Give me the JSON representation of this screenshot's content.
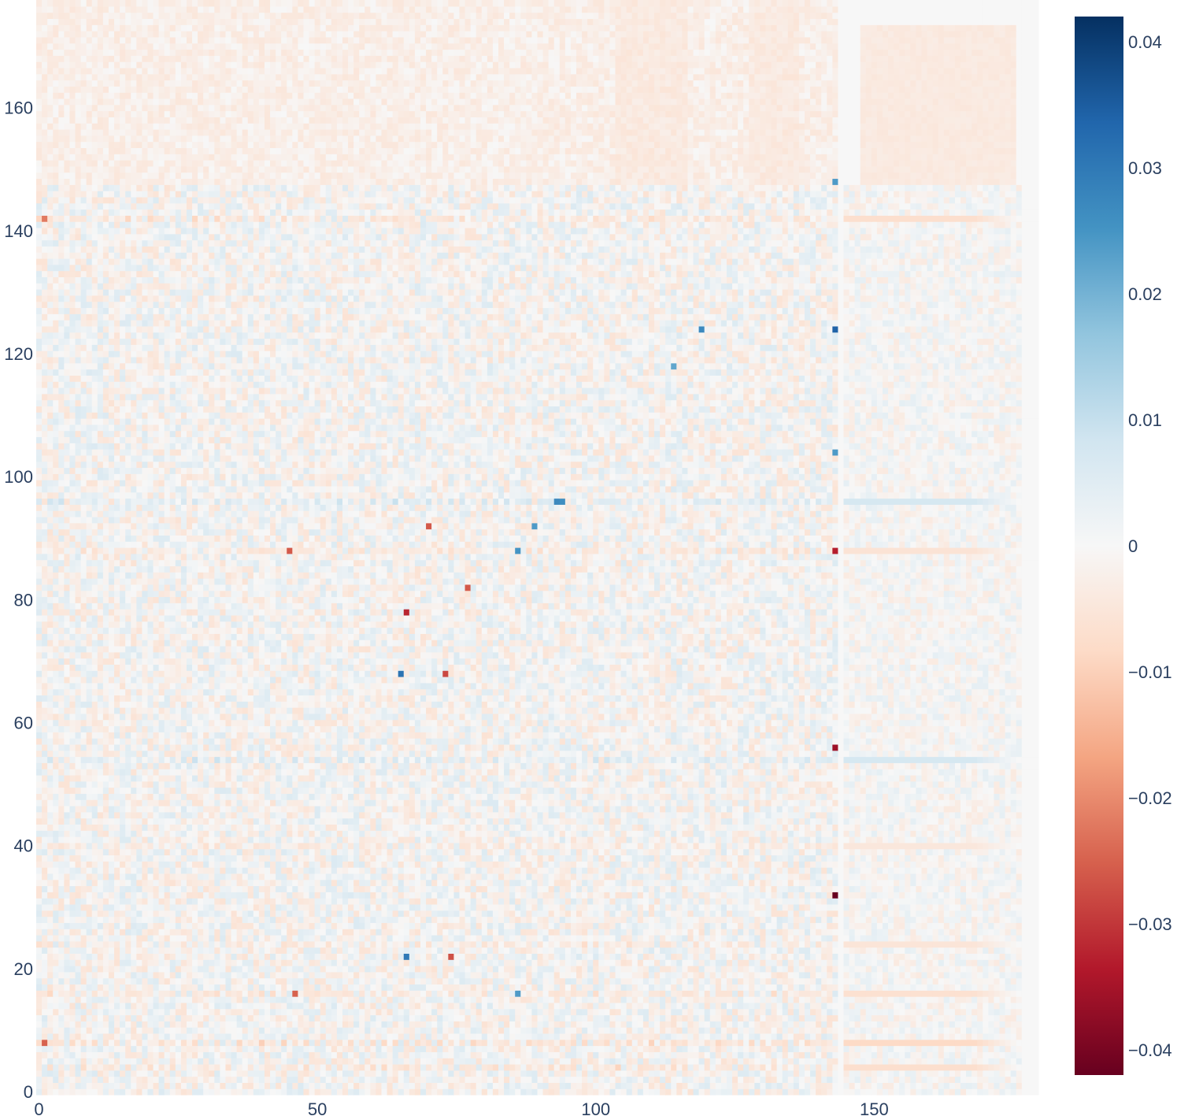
{
  "chart_data": {
    "type": "heatmap",
    "title": "",
    "xlabel": "",
    "ylabel": "",
    "n_cols": 180,
    "n_rows": 178,
    "xlim": [
      -0.5,
      179.5
    ],
    "ylim": [
      -0.5,
      177.5
    ],
    "x_ticks": [
      0,
      50,
      100,
      150
    ],
    "x_tick_labels": [
      "0",
      "50",
      "100",
      "150"
    ],
    "y_ticks": [
      0,
      20,
      40,
      60,
      80,
      100,
      120,
      140,
      160
    ],
    "y_tick_labels": [
      "0",
      "20",
      "40",
      "60",
      "80",
      "100",
      "120",
      "140",
      "160"
    ],
    "colorscale": "RdBu",
    "colorscale_stops": [
      "#67001f",
      "#b2182b",
      "#d6604d",
      "#f4a582",
      "#fddbc7",
      "#f7f7f7",
      "#d1e5f0",
      "#92c5de",
      "#4393c3",
      "#2166ac",
      "#053061"
    ],
    "zmin": -0.042,
    "zmax": 0.042,
    "colorbar_ticks": [
      0.04,
      0.03,
      0.02,
      0.01,
      0,
      -0.01,
      -0.02,
      -0.03,
      -0.04
    ],
    "colorbar_tick_labels": [
      "0.04",
      "0.03",
      "0.02",
      "0.01",
      "0",
      "−0.01",
      "−0.02",
      "−0.03",
      "−0.04"
    ],
    "regions": [
      {
        "desc": "upper band rows 148-177, cols 0-143",
        "rows": [
          148,
          177
        ],
        "cols": [
          0,
          143
        ],
        "mean": -0.0025,
        "spread": 0.0025
      },
      {
        "desc": "upper band rows 148-177, cols 104-116",
        "rows": [
          148,
          177
        ],
        "cols": [
          104,
          116
        ],
        "mean": -0.004,
        "spread": 0.0015
      },
      {
        "desc": "upper band rows 148-177, cols 128-136",
        "rows": [
          148,
          177
        ],
        "cols": [
          128,
          136
        ],
        "mean": -0.004,
        "spread": 0.0015
      },
      {
        "desc": "upper-right block rows 148-173, cols 148-175",
        "rows": [
          148,
          173
        ],
        "cols": [
          148,
          175
        ],
        "mean": -0.004,
        "spread": 0.0008
      },
      {
        "desc": "main body rows 0-147, cols 0-143",
        "rows": [
          0,
          147
        ],
        "cols": [
          0,
          143
        ],
        "mean": 0.0,
        "spread": 0.006
      },
      {
        "desc": "right stripes rows 0-147, cols 145-176",
        "rows": [
          0,
          147
        ],
        "cols": [
          145,
          176
        ],
        "mean": 0.0,
        "spread": 0.004
      }
    ],
    "row_bands": [
      {
        "row": 4,
        "value": -0.012
      },
      {
        "row": 8,
        "value": -0.014
      },
      {
        "row": 16,
        "value": -0.011
      },
      {
        "row": 24,
        "value": -0.009
      },
      {
        "row": 40,
        "value": -0.008
      },
      {
        "row": 54,
        "value": 0.012
      },
      {
        "row": 88,
        "value": -0.01
      },
      {
        "row": 96,
        "value": 0.012
      },
      {
        "row": 142,
        "value": -0.012
      }
    ],
    "notable_cells": [
      {
        "x": 143,
        "y": 32,
        "value": -0.042
      },
      {
        "x": 143,
        "y": 56,
        "value": -0.036
      },
      {
        "x": 143,
        "y": 124,
        "value": 0.034
      },
      {
        "x": 143,
        "y": 88,
        "value": -0.033
      },
      {
        "x": 66,
        "y": 78,
        "value": -0.032
      },
      {
        "x": 65,
        "y": 68,
        "value": 0.031
      },
      {
        "x": 66,
        "y": 22,
        "value": 0.03
      },
      {
        "x": 73,
        "y": 68,
        "value": -0.028
      },
      {
        "x": 74,
        "y": 22,
        "value": -0.027
      },
      {
        "x": 93,
        "y": 96,
        "value": 0.027
      },
      {
        "x": 94,
        "y": 96,
        "value": 0.026
      },
      {
        "x": 119,
        "y": 124,
        "value": 0.027
      },
      {
        "x": 143,
        "y": 148,
        "value": 0.024
      },
      {
        "x": 143,
        "y": 104,
        "value": 0.024
      },
      {
        "x": 86,
        "y": 88,
        "value": 0.025
      },
      {
        "x": 89,
        "y": 92,
        "value": 0.024
      },
      {
        "x": 77,
        "y": 82,
        "value": -0.026
      },
      {
        "x": 45,
        "y": 88,
        "value": -0.026
      },
      {
        "x": 70,
        "y": 92,
        "value": -0.026
      },
      {
        "x": 46,
        "y": 16,
        "value": -0.025
      },
      {
        "x": 1,
        "y": 8,
        "value": -0.025
      },
      {
        "x": 1,
        "y": 142,
        "value": -0.022
      },
      {
        "x": 86,
        "y": 16,
        "value": 0.024
      },
      {
        "x": 114,
        "y": 118,
        "value": 0.022
      }
    ]
  }
}
